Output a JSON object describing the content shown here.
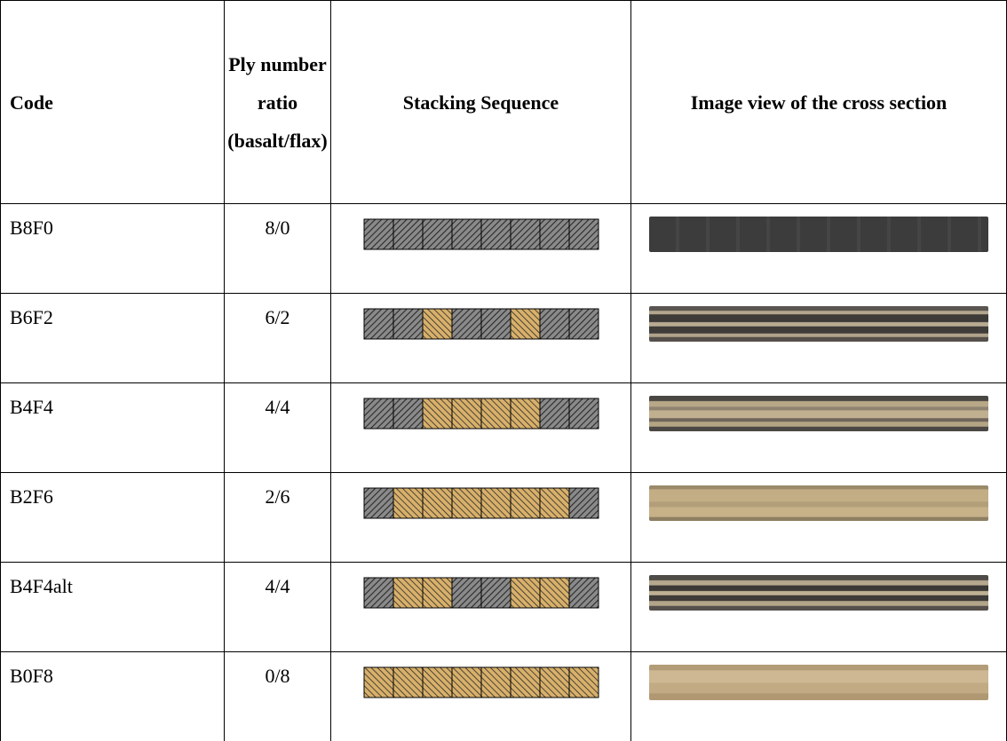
{
  "table": {
    "header": [
      "Code",
      "Ply number ratio (basalt/flax)",
      "Stacking Sequence",
      "Image view of the cross section"
    ],
    "rows": [
      [
        "B8F0",
        "8/0"
      ],
      [
        "B6F2",
        "6/2"
      ],
      [
        "B4F4",
        "4/4"
      ],
      [
        "B2F6",
        "2/6"
      ],
      [
        "B4F4alt",
        "4/4"
      ],
      [
        "B0F8",
        "0/8"
      ]
    ]
  }
}
